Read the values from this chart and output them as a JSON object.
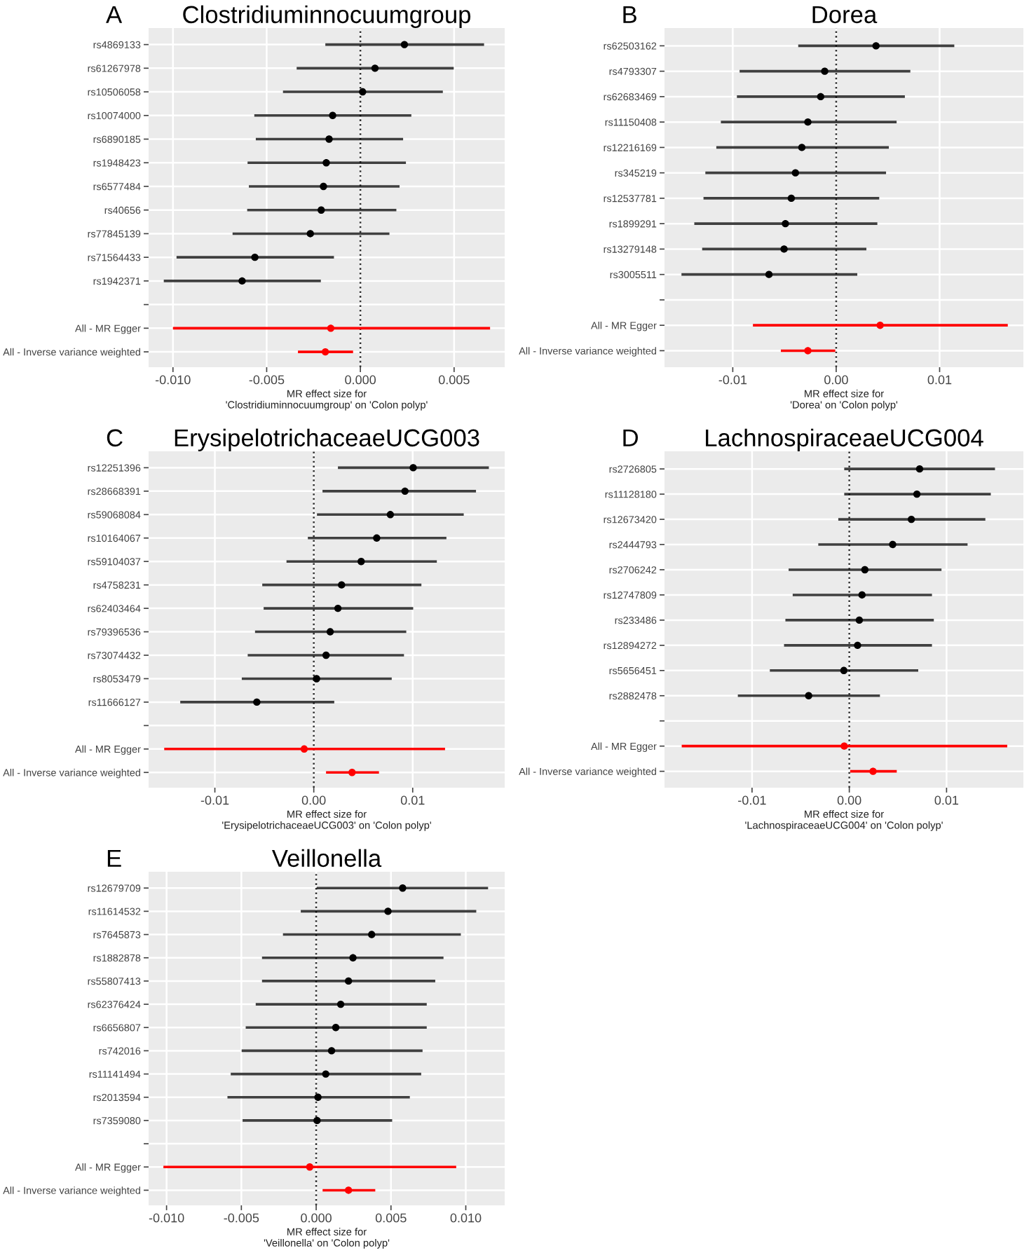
{
  "chart_data": [
    {
      "type": "scatter",
      "orientation": "horizontal",
      "title": "Clostridiuminnocuumgroup",
      "xlabel": "MR effect size for\n'Clostridiuminnocuumgroup' on 'Colon polyp'",
      "annotations": [
        "A"
      ],
      "marker": "circle",
      "grid": true,
      "categories": [
        "rs4869133",
        "rs61267978",
        "rs10506058",
        "rs10074000",
        "rs6890185",
        "rs1948423",
        "rs6577484",
        "rs40656",
        "rs77845139",
        "rs71564433",
        "rs1942371",
        null,
        "All - MR Egger",
        "All - Inverse variance weighted"
      ],
      "xlim": [
        -0.0113,
        0.0077
      ],
      "xticks": [
        {
          "value": -0.01,
          "label": "-0.010"
        },
        {
          "value": -0.005,
          "label": "-0.005"
        },
        {
          "value": 0,
          "label": "0.000"
        },
        {
          "value": 0.005,
          "label": "0.005"
        }
      ],
      "ref_lines": [
        {
          "axis": "x",
          "value": 0,
          "line_style": "dotted",
          "color": "#333333"
        }
      ],
      "series": [
        {
          "color": "#000000",
          "values": [
            0.00235,
            0.00078,
            0.00012,
            -0.00148,
            -0.00167,
            -0.00182,
            -0.00197,
            -0.00209,
            -0.00267,
            -0.00563,
            -0.00631,
            null,
            null,
            null
          ],
          "errors": [
            [
              -0.00187,
              0.0066
            ],
            [
              -0.0034,
              0.00498
            ],
            [
              -0.00413,
              0.0044
            ],
            [
              -0.00566,
              0.00272
            ],
            [
              -0.00558,
              0.00228
            ],
            [
              -0.00602,
              0.00243
            ],
            [
              -0.00595,
              0.00209
            ],
            [
              -0.00604,
              0.00192
            ],
            [
              -0.00682,
              0.00155
            ],
            [
              -0.00981,
              -0.00141
            ],
            [
              -0.01049,
              -0.00211
            ],
            null,
            null,
            null
          ]
        },
        {
          "color": "#ff0000",
          "values": [
            null,
            null,
            null,
            null,
            null,
            null,
            null,
            null,
            null,
            null,
            null,
            null,
            -0.00158,
            -0.00187
          ],
          "errors": [
            null,
            null,
            null,
            null,
            null,
            null,
            null,
            null,
            null,
            null,
            null,
            null,
            [
              -0.01,
              0.00692
            ],
            [
              -0.00333,
              -0.00039
            ]
          ]
        }
      ]
    },
    {
      "type": "scatter",
      "orientation": "horizontal",
      "title": "Dorea",
      "xlabel": "MR effect size for\n'Dorea' on 'Colon polyp'",
      "annotations": [
        "B"
      ],
      "marker": "circle",
      "grid": true,
      "categories": [
        "rs62503162",
        "rs4793307",
        "rs62683469",
        "rs11150408",
        "rs12216169",
        "rs345219",
        "rs12537781",
        "rs1899291",
        "rs13279148",
        "rs3005511",
        null,
        "All - MR Egger",
        "All - Inverse variance weighted"
      ],
      "xlim": [
        -0.0166,
        0.0181
      ],
      "xticks": [
        {
          "value": -0.01,
          "label": "-0.01"
        },
        {
          "value": 0,
          "label": "0.00"
        },
        {
          "value": 0.01,
          "label": "0.01"
        }
      ],
      "ref_lines": [
        {
          "axis": "x",
          "value": 0,
          "line_style": "dotted",
          "color": "#333333"
        }
      ],
      "series": [
        {
          "color": "#000000",
          "values": [
            0.00385,
            -0.00111,
            -0.0015,
            -0.00274,
            -0.00332,
            -0.00394,
            -0.00434,
            -0.00491,
            -0.00504,
            -0.0065,
            null,
            null,
            null
          ],
          "errors": [
            [
              -0.00367,
              0.01142
            ],
            [
              -0.00934,
              0.00717
            ],
            [
              -0.0096,
              0.00664
            ],
            [
              -0.01115,
              0.00584
            ],
            [
              -0.01159,
              0.00509
            ],
            [
              -0.01265,
              0.00482
            ],
            [
              -0.01283,
              0.00416
            ],
            [
              -0.01372,
              0.00398
            ],
            [
              -0.01296,
              0.00292
            ],
            [
              -0.01496,
              0.00204
            ],
            null,
            null,
            null
          ]
        },
        {
          "color": "#ff0000",
          "values": [
            null,
            null,
            null,
            null,
            null,
            null,
            null,
            null,
            null,
            null,
            null,
            0.00425,
            -0.00274
          ],
          "errors": [
            null,
            null,
            null,
            null,
            null,
            null,
            null,
            null,
            null,
            null,
            null,
            [
              -0.00805,
              0.01659
            ],
            [
              -0.00535,
              -9e-05
            ]
          ]
        }
      ]
    },
    {
      "type": "scatter",
      "orientation": "horizontal",
      "title": "ErysipelotrichaceaeUCG003",
      "xlabel": "MR effect size for\n'ErysipelotrichaceaeUCG003' on 'Colon polyp'",
      "annotations": [
        "C"
      ],
      "marker": "circle",
      "grid": true,
      "categories": [
        "rs12251396",
        "rs28668391",
        "rs59068084",
        "rs10164067",
        "rs59104037",
        "rs4758231",
        "rs62403464",
        "rs79396536",
        "rs73074432",
        "rs8053479",
        "rs11666127",
        null,
        "All - MR Egger",
        "All - Inverse variance weighted"
      ],
      "xlim": [
        -0.0167,
        0.0193
      ],
      "xticks": [
        {
          "value": -0.01,
          "label": "-0.01"
        },
        {
          "value": 0,
          "label": "0.00"
        },
        {
          "value": 0.01,
          "label": "0.01"
        }
      ],
      "ref_lines": [
        {
          "axis": "x",
          "value": 0,
          "line_style": "dotted",
          "color": "#333333"
        }
      ],
      "series": [
        {
          "color": "#000000",
          "values": [
            0.01005,
            0.00922,
            0.00774,
            0.00636,
            0.00479,
            0.00281,
            0.00244,
            0.00166,
            0.00124,
            0.00028,
            -0.00576,
            null,
            null,
            null
          ],
          "errors": [
            [
              0.00244,
              0.0177
            ],
            [
              0.00088,
              0.0164
            ],
            [
              0.00032,
              0.01516
            ],
            [
              -0.0006,
              0.01341
            ],
            [
              -0.00276,
              0.01244
            ],
            [
              -0.00521,
              0.01088
            ],
            [
              -0.00507,
              0.01005
            ],
            [
              -0.00594,
              0.00935
            ],
            [
              -0.00668,
              0.00912
            ],
            [
              -0.00728,
              0.00788
            ],
            [
              -0.0135,
              0.00207
            ],
            null,
            null,
            null
          ]
        },
        {
          "color": "#ff0000",
          "values": [
            null,
            null,
            null,
            null,
            null,
            null,
            null,
            null,
            null,
            null,
            null,
            null,
            -0.00097,
            0.00387
          ],
          "errors": [
            null,
            null,
            null,
            null,
            null,
            null,
            null,
            null,
            null,
            null,
            null,
            null,
            [
              -0.01512,
              0.01327
            ],
            [
              0.00124,
              0.00659
            ]
          ]
        }
      ]
    },
    {
      "type": "scatter",
      "orientation": "horizontal",
      "title": "LachnospiraceaeUCG004",
      "xlabel": "MR effect size for\n'LachnospiraceaeUCG004' on 'Colon polyp'",
      "annotations": [
        "D"
      ],
      "marker": "circle",
      "grid": true,
      "categories": [
        "rs2726805",
        "rs11128180",
        "rs12673420",
        "rs2444793",
        "rs2706242",
        "rs12747809",
        "rs233486",
        "rs12894272",
        "rs5656451",
        "rs2882478",
        null,
        "All - MR Egger",
        "All - Inverse variance weighted"
      ],
      "xlim": [
        -0.019,
        0.0179
      ],
      "xticks": [
        {
          "value": -0.01,
          "label": "-0.01"
        },
        {
          "value": 0,
          "label": "0.00"
        },
        {
          "value": 0.01,
          "label": "0.01"
        }
      ],
      "ref_lines": [
        {
          "axis": "x",
          "value": 0,
          "line_style": "dotted",
          "color": "#333333"
        }
      ],
      "series": [
        {
          "color": "#000000",
          "values": [
            0.00723,
            0.00695,
            0.00638,
            0.00446,
            0.0016,
            0.00131,
            0.00103,
            0.00085,
            -0.00056,
            -0.00418,
            null,
            null,
            null
          ],
          "errors": [
            [
              -0.00052,
              0.01498
            ],
            [
              -0.00052,
              0.01455
            ],
            [
              -0.00113,
              0.01399
            ],
            [
              -0.00319,
              0.01216
            ],
            [
              -0.00624,
              0.00948
            ],
            [
              -0.00582,
              0.0085
            ],
            [
              -0.00657,
              0.00869
            ],
            [
              -0.00671,
              0.0085
            ],
            [
              -0.00817,
              0.00709
            ],
            [
              -0.01146,
              0.00315
            ],
            null,
            null,
            null
          ]
        },
        {
          "color": "#ff0000",
          "values": [
            null,
            null,
            null,
            null,
            null,
            null,
            null,
            null,
            null,
            null,
            null,
            -0.00052,
            0.00244
          ],
          "errors": [
            null,
            null,
            null,
            null,
            null,
            null,
            null,
            null,
            null,
            null,
            null,
            [
              -0.01723,
              0.01624
            ],
            [
              9e-05,
              0.00488
            ]
          ]
        }
      ]
    },
    {
      "type": "scatter",
      "orientation": "horizontal",
      "title": "Veillonella",
      "xlabel": "MR effect size for\n'Veillonella' on 'Colon polyp'",
      "annotations": [
        "E"
      ],
      "marker": "circle",
      "grid": true,
      "categories": [
        "rs12679709",
        "rs11614532",
        "rs7645873",
        "rs1882878",
        "rs55807413",
        "rs62376424",
        "rs6656807",
        "rs742016",
        "rs11141494",
        "rs2013594",
        "rs7359080",
        null,
        "All - MR Egger",
        "All - Inverse variance weighted"
      ],
      "xlim": [
        -0.0112,
        0.0126
      ],
      "xticks": [
        {
          "value": -0.01,
          "label": "-0.010"
        },
        {
          "value": -0.005,
          "label": "-0.005"
        },
        {
          "value": 0,
          "label": "0.000"
        },
        {
          "value": 0.005,
          "label": "0.005"
        },
        {
          "value": 0.01,
          "label": "0.010"
        }
      ],
      "ref_lines": [
        {
          "axis": "x",
          "value": 0,
          "line_style": "dotted",
          "color": "#333333"
        }
      ],
      "series": [
        {
          "color": "#000000",
          "values": [
            0.00578,
            0.0048,
            0.00371,
            0.00246,
            0.00216,
            0.00164,
            0.00131,
            0.00103,
            0.00064,
            0.00012,
            6e-05,
            null,
            null,
            null
          ],
          "errors": [
            [
              3e-05,
              0.01149
            ],
            [
              -0.00103,
              0.0107
            ],
            [
              -0.00222,
              0.00967
            ],
            [
              -0.00362,
              0.00851
            ],
            [
              -0.00362,
              0.00796
            ],
            [
              -0.00404,
              0.00739
            ],
            [
              -0.00471,
              0.00739
            ],
            [
              -0.00498,
              0.00711
            ],
            [
              -0.00571,
              0.00702
            ],
            [
              -0.00593,
              0.00626
            ],
            [
              -0.00492,
              0.00508
            ],
            null,
            null,
            null
          ]
        },
        {
          "color": "#ff0000",
          "values": [
            null,
            null,
            null,
            null,
            null,
            null,
            null,
            null,
            null,
            null,
            null,
            null,
            -0.00043,
            0.00216
          ],
          "errors": [
            null,
            null,
            null,
            null,
            null,
            null,
            null,
            null,
            null,
            null,
            null,
            null,
            [
              -0.01021,
              0.00936
            ],
            [
              0.00043,
              0.00395
            ]
          ]
        }
      ]
    }
  ]
}
